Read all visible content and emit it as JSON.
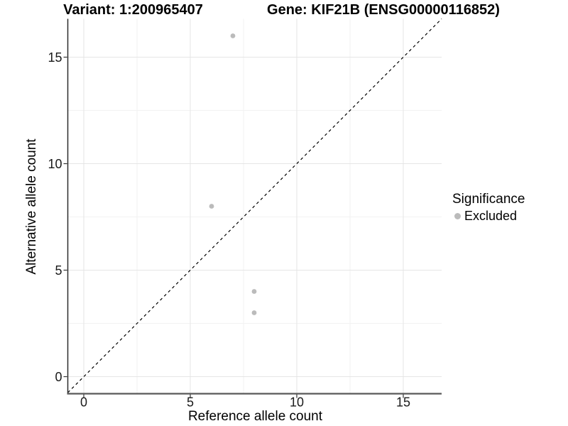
{
  "chart_data": {
    "type": "scatter",
    "titles": {
      "variant": "Variant: 1:200965407",
      "gene": "Gene: KIF21B (ENSG00000116852)"
    },
    "xlabel": "Reference allele count",
    "ylabel": "Alternative allele count",
    "xlim": [
      -0.75,
      16.8
    ],
    "ylim": [
      -0.8,
      16.8
    ],
    "x_ticks": [
      0,
      5,
      10,
      15
    ],
    "y_ticks": [
      0,
      5,
      10,
      15
    ],
    "x_minor_ticks": [
      2.5,
      7.5,
      12.5
    ],
    "y_minor_ticks": [
      2.5,
      7.5,
      12.5
    ],
    "grid": "major and minor gridlines, light gray on white",
    "legend": {
      "title": "Significance",
      "position": "right",
      "items": [
        {
          "label": "Excluded",
          "color": "#bbbbbb"
        }
      ]
    },
    "reference_line": {
      "type": "identity y=x",
      "style": "dashed",
      "color": "#000000"
    },
    "series": [
      {
        "name": "Excluded",
        "color": "#bbbbbb",
        "marker": "circle",
        "points": [
          {
            "x": 7,
            "y": 16
          },
          {
            "x": 6,
            "y": 8
          },
          {
            "x": 8,
            "y": 4
          },
          {
            "x": 8,
            "y": 3
          }
        ]
      }
    ],
    "colors": {
      "major_grid": "#e5e5e5",
      "minor_grid": "#f2f2f2",
      "axis_line_x": "#595959",
      "axis_line_y": "#2a2a2a",
      "tick_label": "#1a1a1a"
    }
  }
}
